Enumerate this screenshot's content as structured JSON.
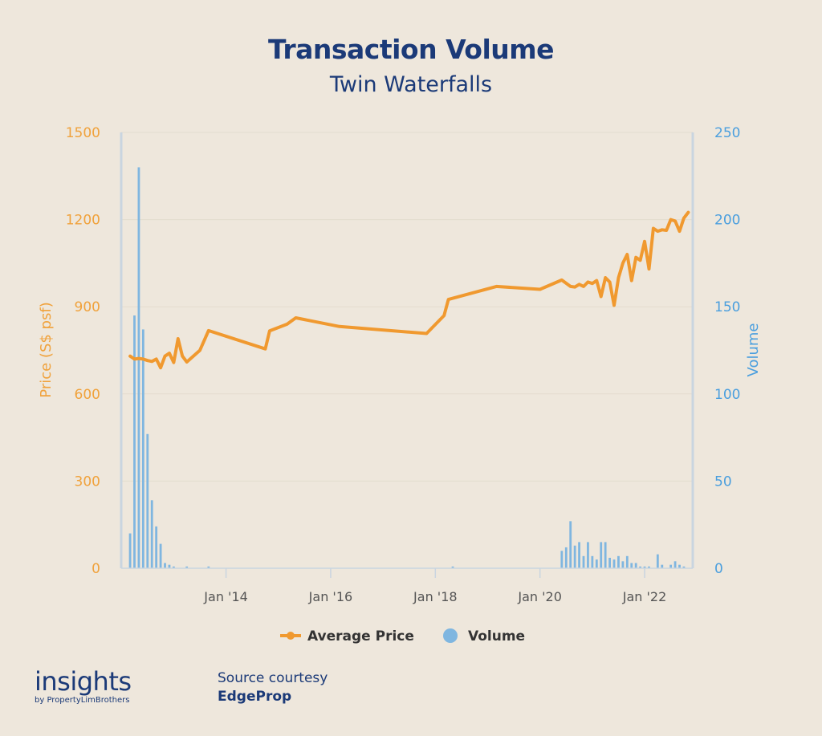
{
  "chart_data": {
    "type": "bar+line",
    "title": "Transaction Volume",
    "subtitle": "Twin Waterfalls",
    "y_left_label": "Price (S$ psf)",
    "y_right_label": "Volume",
    "y_left_range": [
      0,
      1500
    ],
    "y_right_range": [
      0,
      250
    ],
    "y_left_ticks": [
      "0",
      "300",
      "600",
      "900",
      "1200",
      "1500"
    ],
    "y_right_ticks": [
      "0",
      "50",
      "100",
      "150",
      "200",
      "250"
    ],
    "x_ticks": [
      "Jan '14",
      "Jan '16",
      "Jan '18",
      "Jan '20",
      "Jan '22"
    ],
    "x_tick_dates": [
      "2014-01",
      "2016-01",
      "2018-01",
      "2020-01",
      "2022-01"
    ],
    "x_range": [
      "2012-02",
      "2022-11"
    ],
    "legend_position": "bottom",
    "colors": {
      "price": "#f0992f",
      "volume": "#7fb6e0",
      "left_axis": "#f0a23c",
      "right_axis": "#4b9fde",
      "text": "#1b3a78"
    },
    "series": [
      {
        "name": "Average Price",
        "kind": "line",
        "axis": "left",
        "points": [
          [
            "2012-03",
            730
          ],
          [
            "2012-04",
            720
          ],
          [
            "2012-05",
            722
          ],
          [
            "2012-06",
            720
          ],
          [
            "2012-07",
            715
          ],
          [
            "2012-08",
            712
          ],
          [
            "2012-09",
            720
          ],
          [
            "2012-10",
            690
          ],
          [
            "2012-11",
            730
          ],
          [
            "2012-12",
            740
          ],
          [
            "2013-01",
            708
          ],
          [
            "2013-02",
            790
          ],
          [
            "2013-03",
            730
          ],
          [
            "2013-04",
            710
          ],
          [
            "2013-07",
            750
          ],
          [
            "2013-09",
            818
          ],
          [
            "2014-10",
            755
          ],
          [
            "2014-11",
            817
          ],
          [
            "2015-03",
            840
          ],
          [
            "2015-05",
            862
          ],
          [
            "2016-03",
            832
          ],
          [
            "2017-11",
            808
          ],
          [
            "2018-03",
            870
          ],
          [
            "2018-04",
            925
          ],
          [
            "2019-03",
            970
          ],
          [
            "2020-01",
            960
          ],
          [
            "2020-06",
            992
          ],
          [
            "2020-08",
            970
          ],
          [
            "2020-09",
            968
          ],
          [
            "2020-10",
            977
          ],
          [
            "2020-11",
            970
          ],
          [
            "2020-12",
            985
          ],
          [
            "2021-01",
            980
          ],
          [
            "2021-02",
            990
          ],
          [
            "2021-03",
            935
          ],
          [
            "2021-04",
            1000
          ],
          [
            "2021-05",
            985
          ],
          [
            "2021-06",
            905
          ],
          [
            "2021-07",
            1000
          ],
          [
            "2021-08",
            1050
          ],
          [
            "2021-09",
            1080
          ],
          [
            "2021-10",
            990
          ],
          [
            "2021-11",
            1070
          ],
          [
            "2021-12",
            1060
          ],
          [
            "2022-01",
            1125
          ],
          [
            "2022-02",
            1030
          ],
          [
            "2022-03",
            1170
          ],
          [
            "2022-04",
            1160
          ],
          [
            "2022-05",
            1165
          ],
          [
            "2022-06",
            1163
          ],
          [
            "2022-07",
            1200
          ],
          [
            "2022-08",
            1195
          ],
          [
            "2022-09",
            1160
          ],
          [
            "2022-10",
            1205
          ],
          [
            "2022-11",
            1225
          ]
        ]
      },
      {
        "name": "Volume",
        "kind": "bar",
        "axis": "right",
        "points": [
          [
            "2012-03",
            20
          ],
          [
            "2012-04",
            145
          ],
          [
            "2012-05",
            230
          ],
          [
            "2012-06",
            137
          ],
          [
            "2012-07",
            77
          ],
          [
            "2012-08",
            39
          ],
          [
            "2012-09",
            24
          ],
          [
            "2012-10",
            14
          ],
          [
            "2012-11",
            3
          ],
          [
            "2012-12",
            2
          ],
          [
            "2013-01",
            1
          ],
          [
            "2013-04",
            1
          ],
          [
            "2013-09",
            1
          ],
          [
            "2018-05",
            1
          ],
          [
            "2020-06",
            10
          ],
          [
            "2020-07",
            12
          ],
          [
            "2020-08",
            27
          ],
          [
            "2020-09",
            13
          ],
          [
            "2020-10",
            15
          ],
          [
            "2020-11",
            7
          ],
          [
            "2020-12",
            15
          ],
          [
            "2021-01",
            7
          ],
          [
            "2021-02",
            5
          ],
          [
            "2021-03",
            15
          ],
          [
            "2021-04",
            15
          ],
          [
            "2021-05",
            6
          ],
          [
            "2021-06",
            5
          ],
          [
            "2021-07",
            7
          ],
          [
            "2021-08",
            4
          ],
          [
            "2021-09",
            7
          ],
          [
            "2021-10",
            3
          ],
          [
            "2021-11",
            3
          ],
          [
            "2021-12",
            1
          ],
          [
            "2022-01",
            1
          ],
          [
            "2022-02",
            1
          ],
          [
            "2022-04",
            8
          ],
          [
            "2022-05",
            2
          ],
          [
            "2022-07",
            2
          ],
          [
            "2022-08",
            4
          ],
          [
            "2022-09",
            2
          ],
          [
            "2022-10",
            1
          ]
        ]
      }
    ]
  },
  "legend": {
    "price_label": "Average Price",
    "volume_label": "Volume"
  },
  "brand": {
    "logo_word": "insights",
    "logo_sub": "by PropertyLimBrothers"
  },
  "source": {
    "label": "Source courtesy",
    "name": "EdgeProp"
  }
}
